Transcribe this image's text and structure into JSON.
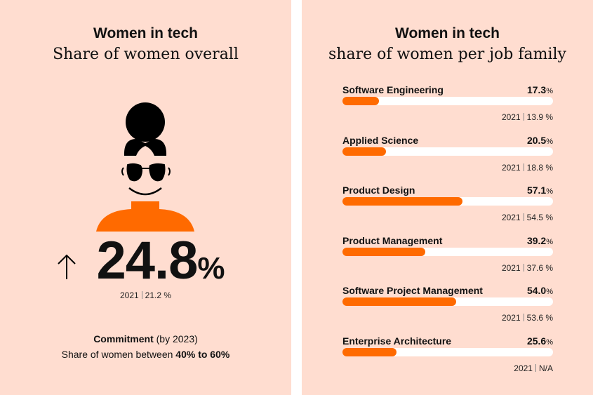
{
  "colors": {
    "background": "#ffddd0",
    "accent": "#ff6a00",
    "track": "#ffffff"
  },
  "left": {
    "title": "Women in tech",
    "subtitle": "Share of women overall",
    "illustration": "woman-with-sunglasses",
    "trend_icon": "arrow-up-icon",
    "value": "24.8",
    "value_unit": "%",
    "prev_year": "2021",
    "prev_value": "21.2 %",
    "commitment_bold": "Commitment",
    "commitment_rest": " (by 2023)",
    "commitment_line2_pre": "Share of women between ",
    "commitment_line2_bold": "40% to 60%"
  },
  "right": {
    "title": "Women in tech",
    "subtitle": "share of women per job family"
  },
  "chart_data": {
    "type": "bar",
    "orientation": "horizontal",
    "xlim": [
      0,
      100
    ],
    "unit": "%",
    "categories": [
      "Software Engineering",
      "Applied Science",
      "Product Design",
      "Product Management",
      "Software Project Management",
      "Enterprise Architecture"
    ],
    "values": [
      17.3,
      20.5,
      57.1,
      39.2,
      54.0,
      25.6
    ],
    "value_labels": [
      "17.3",
      "20.5",
      "57.1",
      "39.2",
      "54.0",
      "25.6"
    ],
    "prev_year": "2021",
    "prev_labels": [
      "13.9 %",
      "18.8 %",
      "54.5 %",
      "37.6 %",
      "53.6 %",
      "N/A"
    ]
  }
}
